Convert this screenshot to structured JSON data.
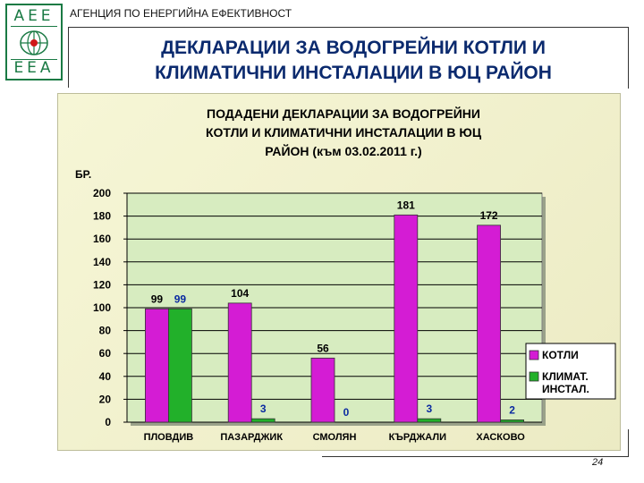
{
  "header": {
    "logo_top": "AEE",
    "logo_bottom": "EEA",
    "agency": "АГЕНЦИЯ ПО ЕНЕРГИЙНА ЕФЕКТИВНОСТ",
    "title_line1": "ДЕКЛАРАЦИИ ЗА ВОДОГРЕЙНИ КОТЛИ И",
    "title_line2": "КЛИМАТИЧНИ ИНСТАЛАЦИИ В ЮЦ РАЙОН"
  },
  "footer": {
    "page_number": "24"
  },
  "colors": {
    "series1": "#d41cd4",
    "series2": "#22b02a",
    "title": "#0b2a6e",
    "plot_bg": "#d7ecc0",
    "frame_bg": "#f2f1d0"
  },
  "chart_data": {
    "type": "bar",
    "title": [
      "ПОДАДЕНИ ДЕКЛАРАЦИИ ЗА ВОДОГРЕЙНИ",
      "КОТЛИ И КЛИМАТИЧНИ ИНСТАЛАЦИИ  В ЮЦ",
      "РАЙОН (към 03.02.2011 г.)"
    ],
    "ylabel": "БР.",
    "ylim": [
      0,
      200
    ],
    "yticks": [
      0,
      20,
      40,
      60,
      80,
      100,
      120,
      140,
      160,
      180,
      200
    ],
    "categories": [
      "ПЛОВДИВ",
      "ПАЗАРДЖИК",
      "СМОЛЯН",
      "КЪРДЖАЛИ",
      "ХАСКОВО"
    ],
    "series": [
      {
        "name": "КОТЛИ",
        "values": [
          99,
          104,
          56,
          181,
          172
        ],
        "color": "#d41cd4",
        "label_color": "#000000"
      },
      {
        "name": "КЛИМАТ. ИНСТАЛ.",
        "values": [
          99,
          3,
          0,
          3,
          2
        ],
        "color": "#22b02a",
        "label_color": "#0a2aa0"
      }
    ],
    "legend": "right",
    "grid": true
  }
}
